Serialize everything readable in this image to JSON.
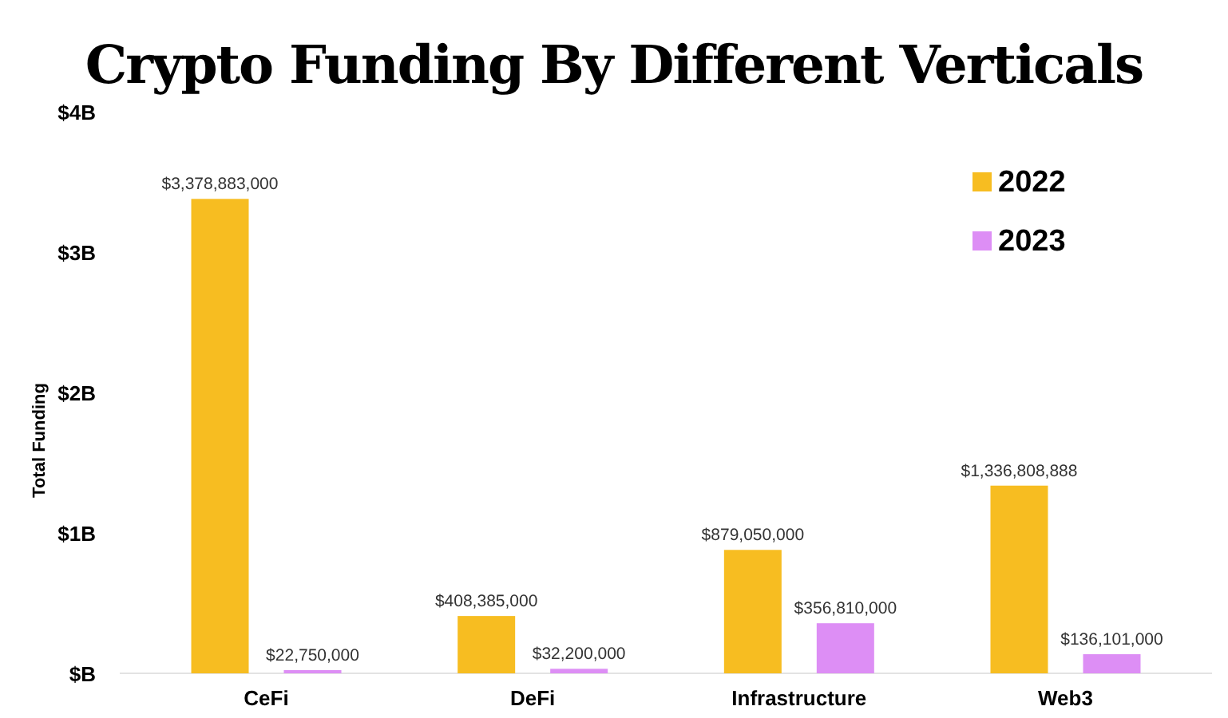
{
  "chart_data": {
    "type": "bar",
    "title": "Crypto Funding By Different Verticals",
    "ylabel": "Total Funding",
    "categories": [
      "CeFi",
      "DeFi",
      "Infrastructure",
      "Web3"
    ],
    "series": [
      {
        "name": "2022",
        "color": "#f7bd21",
        "values": [
          3378883000,
          408385000,
          879050000,
          1336808888
        ],
        "value_labels": [
          "$3,378,883,000",
          "$408,385,000",
          "$879,050,000",
          "$1,336,808,888"
        ]
      },
      {
        "name": "2023",
        "color": "#dd8ef5",
        "values": [
          22750000,
          32200000,
          356810000,
          136101000
        ],
        "value_labels": [
          "$22,750,000",
          "$32,200,000",
          "$356,810,000",
          "$136,101,000"
        ]
      }
    ],
    "ylim": [
      0,
      4000000000
    ],
    "yticks": [
      {
        "value": 0,
        "label": "$B"
      },
      {
        "value": 1000000000,
        "label": "$1B"
      },
      {
        "value": 2000000000,
        "label": "$2B"
      },
      {
        "value": 3000000000,
        "label": "$3B"
      },
      {
        "value": 4000000000,
        "label": "$4B"
      }
    ],
    "grid": false,
    "legend": "top right"
  }
}
